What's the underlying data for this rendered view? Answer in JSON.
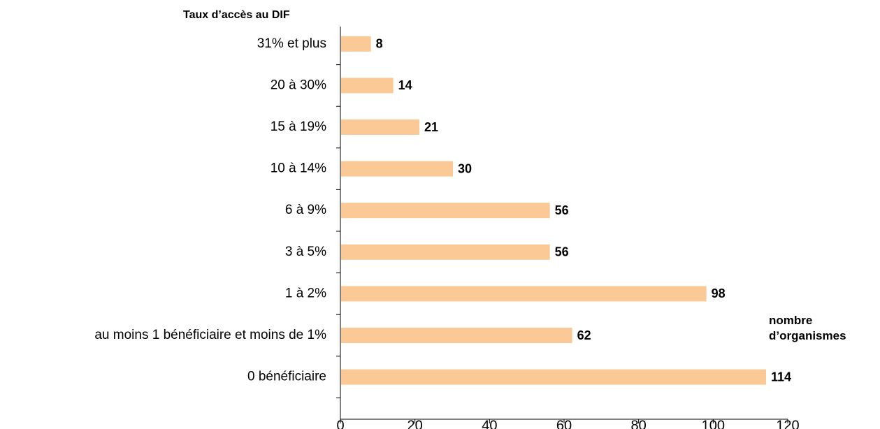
{
  "chart_data": {
    "type": "barh",
    "ytitle": "Taux d’accès au DIF",
    "xlabel": "nombre d’organismes",
    "categories": [
      "31% et plus",
      "20 à 30%",
      "15 à 19%",
      "10 à 14%",
      "6 à 9%",
      "3 à 5%",
      "1 à 2%",
      "au moins 1 bénéficiaire et moins de 1%",
      "0 bénéficiaire"
    ],
    "values": [
      8,
      14,
      21,
      30,
      56,
      56,
      98,
      62,
      114
    ],
    "color": "#fbc995",
    "xlim": [
      0,
      120
    ],
    "xticks": [
      0,
      20,
      40,
      60,
      80,
      100,
      120
    ],
    "grid": false
  }
}
